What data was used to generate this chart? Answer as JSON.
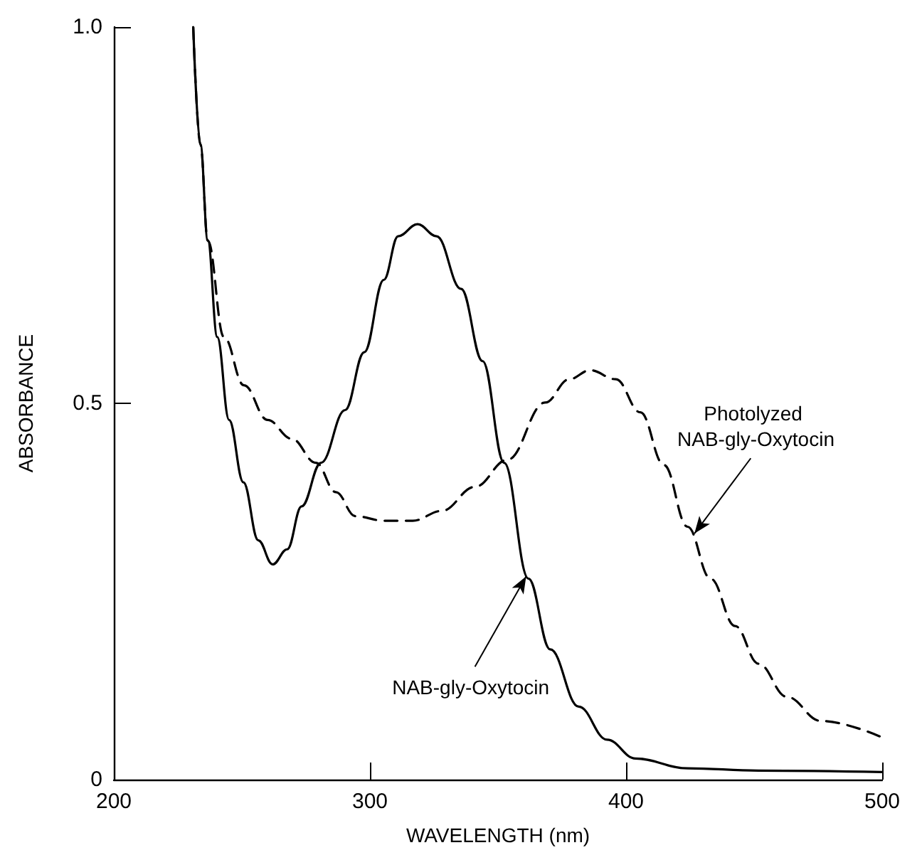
{
  "chart_data": {
    "type": "line",
    "xlabel": "WAVELENGTH (nm)",
    "ylabel": "ABSORBANCE",
    "xlim": [
      200,
      500
    ],
    "xticks": [
      200,
      300,
      400,
      500
    ],
    "ylim": [
      0,
      1
    ],
    "yticks": [
      0,
      0.5,
      {
        "value": 1,
        "label": "1.0"
      }
    ],
    "grid": false,
    "marker": "none",
    "series": [
      {
        "color": "#000000",
        "line_style": "solid",
        "x": [
          231,
          233.8,
          236.7,
          240.4,
          245,
          250.6,
          256.4,
          262,
          267.7,
          273.3,
          280.9,
          290.3,
          297.8,
          305.4,
          311,
          318.6,
          326,
          335.6,
          344,
          352.4,
          361.9,
          370.4,
          381.5,
          392.6,
          403.7,
          424,
          451.7,
          500
        ],
        "values": [
          1.0,
          0.844,
          0.716,
          0.588,
          0.478,
          0.395,
          0.318,
          0.286,
          0.306,
          0.363,
          0.421,
          0.491,
          0.568,
          0.664,
          0.722,
          0.738,
          0.722,
          0.652,
          0.556,
          0.421,
          0.267,
          0.173,
          0.097,
          0.053,
          0.028,
          0.015,
          0.012,
          0.01
        ]
      },
      {
        "color": "#000000",
        "line_style": "dashed",
        "x": [
          231,
          233.8,
          236.7,
          243,
          250.8,
          260,
          269.4,
          278.9,
          286.7,
          294.3,
          305.5,
          316.7,
          328,
          341,
          353.7,
          368.4,
          377.8,
          386,
          396,
          405.6,
          414.8,
          424,
          433,
          442.6,
          451.7,
          462.8,
          476,
          500
        ],
        "values": [
          1.0,
          0.844,
          0.716,
          0.588,
          0.524,
          0.478,
          0.453,
          0.421,
          0.382,
          0.35,
          0.344,
          0.344,
          0.357,
          0.389,
          0.425,
          0.501,
          0.532,
          0.544,
          0.532,
          0.488,
          0.418,
          0.336,
          0.267,
          0.204,
          0.154,
          0.11,
          0.078,
          0.056
        ]
      }
    ],
    "annotations": [
      {
        "text": "NAB-gly-Oxytocin",
        "x": 361,
        "y": 0.27
      },
      {
        "text": "Photolyzed NAB-gly-Oxytocin",
        "x": 426.7,
        "y": 0.327
      }
    ]
  }
}
